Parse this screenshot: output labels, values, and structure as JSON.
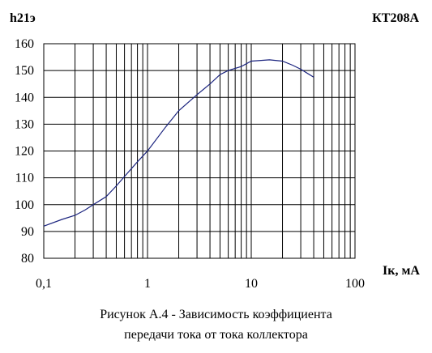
{
  "chart_data": {
    "type": "line",
    "title": "КТ208А",
    "ylabel": "h21э",
    "xlabel": "Iк, мА",
    "x_scale": "log",
    "xlim": [
      0.1,
      100
    ],
    "ylim": [
      80,
      160
    ],
    "x_ticks": [
      "0,1",
      "1",
      "10",
      "100"
    ],
    "y_ticks": [
      "80",
      "90",
      "100",
      "110",
      "120",
      "130",
      "140",
      "150",
      "160"
    ],
    "grid": true,
    "series": [
      {
        "color": "#1a237e",
        "x": [
          0.1,
          0.15,
          0.2,
          0.25,
          0.3,
          0.4,
          0.5,
          0.6,
          0.8,
          1.0,
          1.5,
          2.0,
          3.0,
          4.0,
          5.0,
          6.0,
          8.0,
          10.0,
          15.0,
          20.0,
          25.0,
          30.0,
          40.0
        ],
        "y": [
          92,
          94.5,
          96,
          98,
          100,
          103,
          107,
          110.5,
          116,
          120,
          129,
          135,
          141,
          145,
          148.5,
          150,
          151.5,
          153.5,
          154,
          153.5,
          152,
          150.5,
          147.5
        ]
      }
    ]
  },
  "caption": {
    "line1": "Рисунок А.4 - Зависимость коэффициента",
    "line2": "передачи тока от тока коллектора"
  }
}
